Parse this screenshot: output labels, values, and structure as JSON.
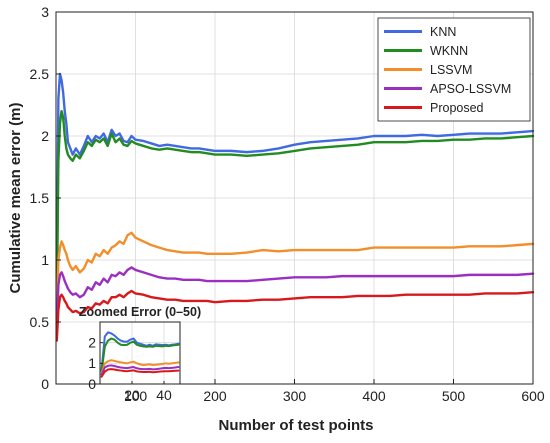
{
  "chart_data": [
    {
      "type": "line",
      "title": "",
      "xlabel": "Number of test points",
      "ylabel": "Cumulative mean error (m)",
      "xlim": [
        0,
        600
      ],
      "ylim": [
        0,
        3
      ],
      "xticks": [
        100,
        200,
        300,
        400,
        500,
        600
      ],
      "yticks": [
        0,
        0.5,
        1,
        1.5,
        2,
        2.5,
        3
      ],
      "grid": true,
      "legend": "top-right",
      "series": [
        {
          "name": "KNN",
          "color": "#4169e1",
          "x": [
            1,
            3,
            5,
            7,
            9,
            11,
            13,
            15,
            18,
            21,
            25,
            30,
            35,
            40,
            45,
            50,
            55,
            60,
            65,
            70,
            75,
            80,
            85,
            90,
            95,
            100,
            110,
            120,
            130,
            140,
            150,
            160,
            170,
            180,
            190,
            200,
            220,
            240,
            260,
            280,
            300,
            320,
            340,
            360,
            380,
            400,
            420,
            440,
            460,
            480,
            500,
            520,
            540,
            560,
            580,
            600
          ],
          "y": [
            0.7,
            2.3,
            2.5,
            2.45,
            2.35,
            2.2,
            2.1,
            1.95,
            1.9,
            1.85,
            1.9,
            1.85,
            1.92,
            2.0,
            1.95,
            2.0,
            1.98,
            2.02,
            1.95,
            2.05,
            2.0,
            2.02,
            1.96,
            1.95,
            2.0,
            1.97,
            1.96,
            1.94,
            1.92,
            1.93,
            1.92,
            1.91,
            1.9,
            1.9,
            1.89,
            1.88,
            1.88,
            1.87,
            1.88,
            1.9,
            1.93,
            1.95,
            1.96,
            1.97,
            1.98,
            2.0,
            2.0,
            2.0,
            2.01,
            2.0,
            2.01,
            2.02,
            2.02,
            2.02,
            2.03,
            2.04
          ]
        },
        {
          "name": "WKNN",
          "color": "#228b22",
          "x": [
            1,
            3,
            5,
            7,
            9,
            11,
            13,
            15,
            18,
            21,
            25,
            30,
            35,
            40,
            45,
            50,
            55,
            60,
            65,
            70,
            75,
            80,
            85,
            90,
            95,
            100,
            110,
            120,
            130,
            140,
            150,
            160,
            170,
            180,
            190,
            200,
            220,
            240,
            260,
            280,
            300,
            320,
            340,
            360,
            380,
            400,
            420,
            440,
            460,
            480,
            500,
            520,
            540,
            560,
            580,
            600
          ],
          "y": [
            0.6,
            1.8,
            2.1,
            2.2,
            2.15,
            2.0,
            1.9,
            1.85,
            1.82,
            1.8,
            1.85,
            1.82,
            1.88,
            1.95,
            1.92,
            1.97,
            1.95,
            1.98,
            1.92,
            2.02,
            1.95,
            1.98,
            1.93,
            1.92,
            1.96,
            1.94,
            1.92,
            1.9,
            1.89,
            1.9,
            1.89,
            1.88,
            1.87,
            1.87,
            1.86,
            1.85,
            1.85,
            1.84,
            1.85,
            1.86,
            1.88,
            1.9,
            1.91,
            1.92,
            1.93,
            1.95,
            1.95,
            1.95,
            1.96,
            1.96,
            1.97,
            1.97,
            1.98,
            1.98,
            1.99,
            2.0
          ]
        },
        {
          "name": "LSSVM",
          "color": "#f28e2b",
          "x": [
            1,
            3,
            5,
            7,
            9,
            11,
            13,
            15,
            18,
            21,
            25,
            30,
            35,
            40,
            45,
            50,
            55,
            60,
            65,
            70,
            75,
            80,
            85,
            90,
            95,
            100,
            110,
            120,
            130,
            140,
            150,
            160,
            170,
            180,
            190,
            200,
            220,
            240,
            260,
            280,
            300,
            320,
            340,
            360,
            380,
            400,
            420,
            440,
            460,
            480,
            500,
            520,
            540,
            560,
            580,
            600
          ],
          "y": [
            0.5,
            1.0,
            1.1,
            1.15,
            1.12,
            1.08,
            1.05,
            1.0,
            0.95,
            0.92,
            0.95,
            0.9,
            0.93,
            1.0,
            0.98,
            1.05,
            1.03,
            1.08,
            1.05,
            1.1,
            1.12,
            1.15,
            1.13,
            1.2,
            1.22,
            1.18,
            1.15,
            1.12,
            1.1,
            1.08,
            1.07,
            1.06,
            1.06,
            1.06,
            1.05,
            1.05,
            1.05,
            1.06,
            1.08,
            1.07,
            1.08,
            1.08,
            1.08,
            1.08,
            1.08,
            1.1,
            1.1,
            1.1,
            1.1,
            1.1,
            1.1,
            1.11,
            1.11,
            1.11,
            1.12,
            1.13
          ]
        },
        {
          "name": "APSO-LSSVM",
          "color": "#9b30c0",
          "x": [
            1,
            3,
            5,
            7,
            9,
            11,
            13,
            15,
            18,
            21,
            25,
            30,
            35,
            40,
            45,
            50,
            55,
            60,
            65,
            70,
            75,
            80,
            85,
            90,
            95,
            100,
            110,
            120,
            130,
            140,
            150,
            160,
            170,
            180,
            190,
            200,
            220,
            240,
            260,
            280,
            300,
            320,
            340,
            360,
            380,
            400,
            420,
            440,
            460,
            480,
            500,
            520,
            540,
            560,
            580,
            600
          ],
          "y": [
            0.45,
            0.8,
            0.88,
            0.9,
            0.87,
            0.83,
            0.8,
            0.77,
            0.74,
            0.72,
            0.73,
            0.7,
            0.72,
            0.78,
            0.76,
            0.82,
            0.8,
            0.85,
            0.82,
            0.88,
            0.87,
            0.9,
            0.88,
            0.92,
            0.94,
            0.92,
            0.9,
            0.88,
            0.86,
            0.85,
            0.85,
            0.84,
            0.84,
            0.84,
            0.83,
            0.83,
            0.83,
            0.83,
            0.84,
            0.85,
            0.86,
            0.86,
            0.86,
            0.87,
            0.87,
            0.87,
            0.87,
            0.87,
            0.87,
            0.87,
            0.87,
            0.88,
            0.88,
            0.88,
            0.88,
            0.89
          ]
        },
        {
          "name": "Proposed",
          "color": "#d7191c",
          "x": [
            1,
            3,
            5,
            7,
            9,
            11,
            13,
            15,
            18,
            21,
            25,
            30,
            35,
            40,
            45,
            50,
            55,
            60,
            65,
            70,
            75,
            80,
            85,
            90,
            95,
            100,
            110,
            120,
            130,
            140,
            150,
            160,
            170,
            180,
            190,
            200,
            220,
            240,
            260,
            280,
            300,
            320,
            340,
            360,
            380,
            400,
            420,
            440,
            460,
            480,
            500,
            520,
            540,
            560,
            580,
            600
          ],
          "y": [
            0.35,
            0.6,
            0.7,
            0.72,
            0.7,
            0.67,
            0.65,
            0.62,
            0.6,
            0.58,
            0.59,
            0.57,
            0.58,
            0.62,
            0.61,
            0.65,
            0.64,
            0.67,
            0.65,
            0.7,
            0.7,
            0.72,
            0.7,
            0.73,
            0.75,
            0.73,
            0.72,
            0.7,
            0.69,
            0.68,
            0.68,
            0.67,
            0.67,
            0.67,
            0.67,
            0.66,
            0.67,
            0.67,
            0.68,
            0.68,
            0.69,
            0.7,
            0.7,
            0.7,
            0.71,
            0.71,
            0.71,
            0.72,
            0.72,
            0.72,
            0.72,
            0.72,
            0.73,
            0.73,
            0.73,
            0.74
          ]
        }
      ]
    },
    {
      "type": "line",
      "title": "Zoomed Error (0–50)",
      "xlabel": "",
      "ylabel": "",
      "xlim": [
        0,
        50
      ],
      "ylim": [
        0,
        3
      ],
      "xticks": [
        20,
        40
      ],
      "yticks": [
        0,
        1,
        2
      ],
      "grid": true,
      "legend": "none",
      "series": [
        {
          "name": "KNN",
          "color": "#4169e1",
          "x": [
            1,
            3,
            5,
            7,
            9,
            11,
            13,
            15,
            17,
            19,
            21,
            23,
            25,
            27,
            29,
            31,
            33,
            35,
            37,
            39,
            41,
            43,
            45,
            47,
            49
          ],
          "y": [
            0.7,
            2.3,
            2.5,
            2.45,
            2.35,
            2.2,
            2.1,
            2.05,
            2.05,
            2.15,
            2.2,
            2.0,
            1.95,
            1.9,
            1.85,
            1.9,
            1.85,
            1.92,
            1.9,
            1.88,
            1.9,
            1.87,
            1.9,
            1.92,
            1.95
          ]
        },
        {
          "name": "WKNN",
          "color": "#228b22",
          "x": [
            1,
            3,
            5,
            7,
            9,
            11,
            13,
            15,
            17,
            19,
            21,
            23,
            25,
            27,
            29,
            31,
            33,
            35,
            37,
            39,
            41,
            43,
            45,
            47,
            49
          ],
          "y": [
            0.6,
            1.8,
            2.1,
            2.2,
            2.15,
            2.0,
            1.9,
            1.88,
            1.9,
            2.0,
            2.05,
            1.9,
            1.85,
            1.82,
            1.8,
            1.82,
            1.8,
            1.85,
            1.83,
            1.82,
            1.85,
            1.83,
            1.86,
            1.88,
            1.9
          ]
        },
        {
          "name": "LSSVM",
          "color": "#f28e2b",
          "x": [
            1,
            3,
            5,
            7,
            9,
            11,
            13,
            15,
            17,
            19,
            21,
            23,
            25,
            27,
            29,
            31,
            33,
            35,
            37,
            39,
            41,
            43,
            45,
            47,
            49
          ],
          "y": [
            0.5,
            1.0,
            1.1,
            1.15,
            1.12,
            1.08,
            1.05,
            1.02,
            1.0,
            1.05,
            1.08,
            1.0,
            0.95,
            0.92,
            0.93,
            0.95,
            0.92,
            0.93,
            0.95,
            0.97,
            1.0,
            0.98,
            1.0,
            1.02,
            1.05
          ]
        },
        {
          "name": "APSO-LSSVM",
          "color": "#9b30c0",
          "x": [
            1,
            3,
            5,
            7,
            9,
            11,
            13,
            15,
            17,
            19,
            21,
            23,
            25,
            27,
            29,
            31,
            33,
            35,
            37,
            39,
            41,
            43,
            45,
            47,
            49
          ],
          "y": [
            0.45,
            0.8,
            0.88,
            0.9,
            0.87,
            0.83,
            0.8,
            0.78,
            0.77,
            0.8,
            0.82,
            0.76,
            0.73,
            0.72,
            0.72,
            0.73,
            0.71,
            0.72,
            0.74,
            0.76,
            0.78,
            0.77,
            0.78,
            0.8,
            0.82
          ]
        },
        {
          "name": "Proposed",
          "color": "#d7191c",
          "x": [
            1,
            3,
            5,
            7,
            9,
            11,
            13,
            15,
            17,
            19,
            21,
            23,
            25,
            27,
            29,
            31,
            33,
            35,
            37,
            39,
            41,
            43,
            45,
            47,
            49
          ],
          "y": [
            0.35,
            0.6,
            0.7,
            0.72,
            0.7,
            0.67,
            0.65,
            0.63,
            0.62,
            0.64,
            0.66,
            0.61,
            0.59,
            0.58,
            0.58,
            0.59,
            0.57,
            0.58,
            0.6,
            0.61,
            0.62,
            0.62,
            0.63,
            0.64,
            0.65
          ]
        }
      ]
    }
  ]
}
